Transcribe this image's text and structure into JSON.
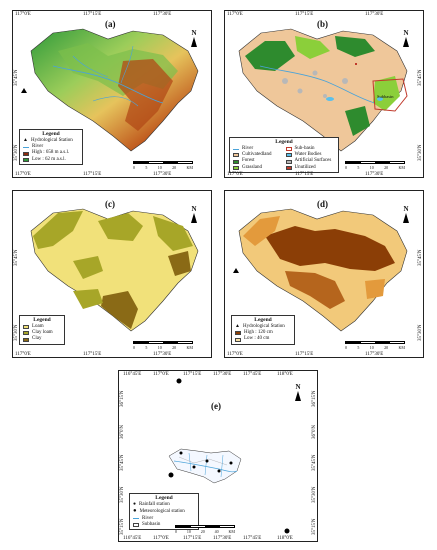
{
  "panels": {
    "a": {
      "label": "(a)",
      "top_ticks": [
        "117°0'E",
        "117°15'E",
        "117°30'E"
      ],
      "bottom_ticks": [
        "117°0'E",
        "117°15'E",
        "117°30'E"
      ],
      "left_ticks": [
        "35°45'N",
        "35°30'N"
      ],
      "legend": {
        "title": "Legend",
        "items": [
          "Hydrological Station",
          "River",
          "High : 658 m a.s.l.",
          "Low : 62 m a.s.l."
        ]
      },
      "north": "N",
      "scale": [
        "0",
        "5",
        "10",
        "20"
      ],
      "scale_unit": "KM"
    },
    "b": {
      "label": "(b)",
      "top_ticks": [
        "117°0'E",
        "117°15'E",
        "117°30'E"
      ],
      "bottom_ticks": [
        "117°0'E",
        "117°15'E",
        "117°30'E"
      ],
      "right_ticks": [
        "35°45'N",
        "35°30'N"
      ],
      "sub_label": "Subbasin",
      "legend": {
        "title": "Legend",
        "items": [
          "River",
          "Sub-basin",
          "Cultivatedland",
          "Water Bodies",
          "Forest",
          "Artificial Surfaces",
          "Grassland",
          "Unutilized"
        ]
      },
      "north": "N",
      "scale": [
        "0",
        "5",
        "10",
        "20"
      ],
      "scale_unit": "KM"
    },
    "c": {
      "label": "(c)",
      "bottom_ticks": [
        "117°0'E",
        "117°15'E",
        "117°30'E"
      ],
      "left_ticks": [
        "35°45'N",
        "35°30'N"
      ],
      "legend": {
        "title": "Legend",
        "items": [
          "Loam",
          "Clay loam",
          "Clay"
        ]
      },
      "north": "N",
      "scale": [
        "0",
        "5",
        "10",
        "20"
      ],
      "scale_unit": "KM"
    },
    "d": {
      "label": "(d)",
      "bottom_ticks": [
        "117°0'E",
        "117°15'E",
        "117°30'E"
      ],
      "right_ticks": [
        "35°45'N",
        "35°30'N"
      ],
      "legend": {
        "title": "Legend",
        "items": [
          "Hydrological Station",
          "High : 120 cm",
          "Low : 40 cm"
        ]
      },
      "north": "N",
      "scale": [
        "0",
        "5",
        "10",
        "20"
      ],
      "scale_unit": "KM"
    },
    "e": {
      "label": "(e)",
      "top_ticks": [
        "116°45'E",
        "117°0'E",
        "117°15'E",
        "117°30'E",
        "117°45'E",
        "118°0'E"
      ],
      "bottom_ticks": [
        "116°45'E",
        "117°0'E",
        "117°15'E",
        "117°30'E",
        "117°45'E",
        "118°0'E"
      ],
      "left_ticks": [
        "36°15'N",
        "36°0'N",
        "35°45'N",
        "35°30'N",
        "35°15'N"
      ],
      "right_ticks": [
        "36°15'N",
        "36°0'N",
        "35°45'N",
        "35°30'N",
        "35°15'N"
      ],
      "legend": {
        "title": "Legend",
        "items": [
          "Rainfall station",
          "Meteorological station",
          "River",
          "Subbasin"
        ]
      },
      "north": "N",
      "scale": [
        "0",
        "10",
        "20",
        "40"
      ],
      "scale_unit": "KM"
    }
  },
  "colors": {
    "dem_high": "#8b2a0e",
    "dem_mid": "#e6c35c",
    "dem_low": "#2f9a3a",
    "river": "#4aa3d9",
    "cultivated": "#efc79a",
    "forest": "#2e8b2e",
    "grass": "#8bcf3a",
    "water": "#5bc0eb",
    "artificial": "#b8b8b8",
    "unutilized": "#c0392b",
    "loam": "#f1e17a",
    "clay_loam": "#a7a628",
    "clay": "#8a6a16",
    "depth_high": "#8b3e06",
    "depth_low": "#f7e0a6"
  }
}
